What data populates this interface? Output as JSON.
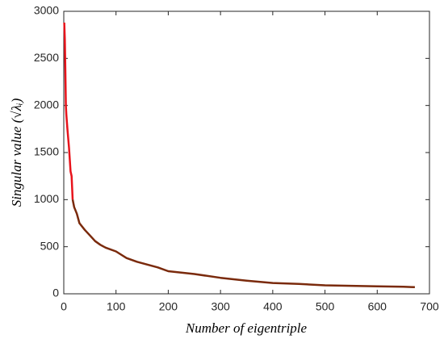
{
  "chart_data": {
    "type": "line",
    "xlabel": "Number of eigentriple",
    "ylabel": "Singular value   (√λᵢ)",
    "series": [
      {
        "color": "#e8141c",
        "x": [
          1,
          2,
          3,
          4,
          5,
          7,
          10,
          13,
          15,
          17
        ],
        "values": [
          2880,
          2700,
          2400,
          2000,
          1900,
          1750,
          1550,
          1300,
          1250,
          1000
        ]
      },
      {
        "color": "#7a2a0c",
        "x": [
          17,
          20,
          25,
          30,
          40,
          50,
          60,
          70,
          80,
          100,
          120,
          140,
          160,
          180,
          200,
          250,
          300,
          350,
          400,
          450,
          500,
          550,
          600,
          650,
          672
        ],
        "values": [
          1000,
          920,
          850,
          750,
          680,
          620,
          560,
          520,
          490,
          450,
          380,
          340,
          310,
          280,
          240,
          210,
          170,
          140,
          115,
          105,
          90,
          85,
          80,
          75,
          70
        ]
      }
    ],
    "xlim": [
      0,
      700
    ],
    "xticks": [
      0,
      100,
      200,
      300,
      400,
      500,
      600,
      700
    ],
    "ylim": [
      0,
      3000
    ],
    "yticks": [
      0,
      500,
      1000,
      1500,
      2000,
      2500,
      3000
    ]
  }
}
